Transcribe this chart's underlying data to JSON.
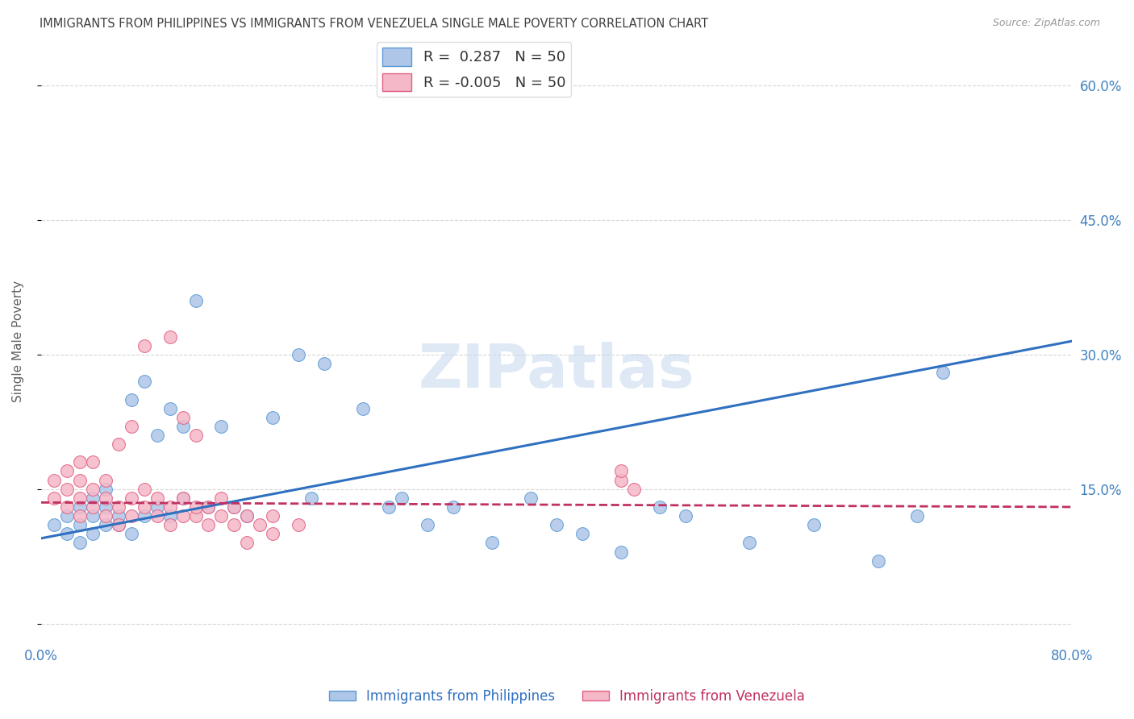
{
  "title": "IMMIGRANTS FROM PHILIPPINES VS IMMIGRANTS FROM VENEZUELA SINGLE MALE POVERTY CORRELATION CHART",
  "source": "Source: ZipAtlas.com",
  "ylabel": "Single Male Poverty",
  "xlim": [
    0.0,
    0.8
  ],
  "ylim": [
    -0.02,
    0.65
  ],
  "yticks": [
    0.0,
    0.15,
    0.3,
    0.45,
    0.6
  ],
  "ytick_labels_right": [
    "",
    "15.0%",
    "30.0%",
    "45.0%",
    "60.0%"
  ],
  "xticks": [
    0.0,
    0.2,
    0.4,
    0.6,
    0.8
  ],
  "xtick_labels": [
    "0.0%",
    "",
    "",
    "",
    "80.0%"
  ],
  "philippines_R": 0.287,
  "venezuela_R": -0.005,
  "N": 50,
  "philippines_color": "#aec6e8",
  "venezuela_color": "#f5b8c8",
  "philippines_edge_color": "#5b9bd5",
  "venezuela_edge_color": "#e06080",
  "philippines_line_color": "#3070c0",
  "venezuela_line_color": "#c03060",
  "background_color": "#ffffff",
  "grid_color": "#cccccc",
  "title_color": "#404040",
  "right_axis_color": "#4080c0",
  "watermark": "ZIPatlas",
  "phil_line_start_y": 0.095,
  "phil_line_end_y": 0.315,
  "ven_line_start_y": 0.135,
  "ven_line_end_y": 0.13,
  "philippines_x": [
    0.01,
    0.02,
    0.02,
    0.03,
    0.03,
    0.03,
    0.04,
    0.04,
    0.04,
    0.05,
    0.05,
    0.05,
    0.06,
    0.06,
    0.07,
    0.07,
    0.08,
    0.08,
    0.09,
    0.09,
    0.1,
    0.1,
    0.11,
    0.11,
    0.12,
    0.13,
    0.14,
    0.15,
    0.16,
    0.18,
    0.2,
    0.21,
    0.22,
    0.25,
    0.27,
    0.28,
    0.3,
    0.32,
    0.35,
    0.38,
    0.4,
    0.42,
    0.45,
    0.48,
    0.5,
    0.55,
    0.6,
    0.65,
    0.68,
    0.7
  ],
  "philippines_y": [
    0.11,
    0.1,
    0.12,
    0.09,
    0.11,
    0.13,
    0.1,
    0.12,
    0.14,
    0.11,
    0.13,
    0.15,
    0.11,
    0.12,
    0.1,
    0.25,
    0.27,
    0.12,
    0.13,
    0.21,
    0.12,
    0.24,
    0.22,
    0.14,
    0.36,
    0.13,
    0.22,
    0.13,
    0.12,
    0.23,
    0.3,
    0.14,
    0.29,
    0.24,
    0.13,
    0.14,
    0.11,
    0.13,
    0.09,
    0.14,
    0.11,
    0.1,
    0.08,
    0.13,
    0.12,
    0.09,
    0.11,
    0.07,
    0.12,
    0.28
  ],
  "venezuela_x": [
    0.01,
    0.01,
    0.02,
    0.02,
    0.02,
    0.03,
    0.03,
    0.03,
    0.03,
    0.04,
    0.04,
    0.04,
    0.05,
    0.05,
    0.05,
    0.06,
    0.06,
    0.06,
    0.07,
    0.07,
    0.07,
    0.08,
    0.08,
    0.08,
    0.09,
    0.09,
    0.1,
    0.1,
    0.1,
    0.11,
    0.11,
    0.11,
    0.12,
    0.12,
    0.12,
    0.13,
    0.13,
    0.14,
    0.14,
    0.15,
    0.15,
    0.16,
    0.16,
    0.17,
    0.18,
    0.18,
    0.2,
    0.45,
    0.45,
    0.46
  ],
  "venezuela_y": [
    0.14,
    0.16,
    0.13,
    0.15,
    0.17,
    0.12,
    0.14,
    0.16,
    0.18,
    0.13,
    0.15,
    0.18,
    0.12,
    0.14,
    0.16,
    0.11,
    0.13,
    0.2,
    0.12,
    0.14,
    0.22,
    0.13,
    0.15,
    0.31,
    0.12,
    0.14,
    0.11,
    0.13,
    0.32,
    0.12,
    0.14,
    0.23,
    0.12,
    0.13,
    0.21,
    0.11,
    0.13,
    0.12,
    0.14,
    0.11,
    0.13,
    0.12,
    0.09,
    0.11,
    0.1,
    0.12,
    0.11,
    0.16,
    0.17,
    0.15
  ]
}
